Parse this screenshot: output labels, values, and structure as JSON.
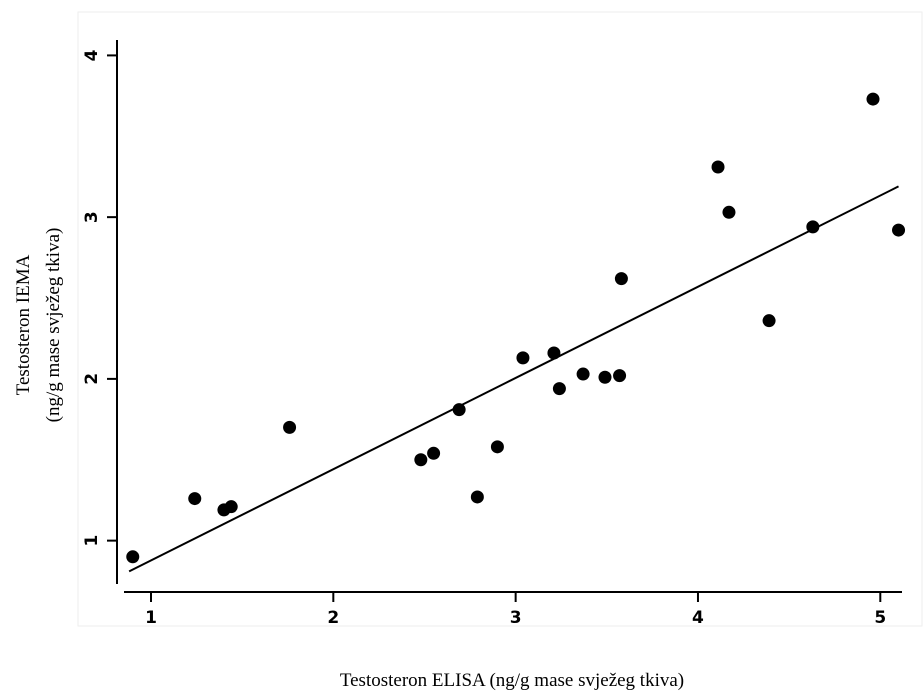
{
  "chart_data": {
    "type": "scatter",
    "xlabel": "Testosteron ELISA (ng/g mase svježeg tkiva)",
    "ylabel_line1": "Testosteron IEMA",
    "ylabel_line2": "(ng/g mase svježeg tkiva)",
    "xlim": [
      0.83,
      5.13
    ],
    "ylim": [
      0.67,
      4.12
    ],
    "xticks": [
      1,
      2,
      3,
      4,
      5
    ],
    "yticks": [
      1,
      2,
      3,
      4
    ],
    "grid": false,
    "legend": "none",
    "points": [
      {
        "x": 0.9,
        "y": 0.9
      },
      {
        "x": 1.24,
        "y": 1.26
      },
      {
        "x": 1.4,
        "y": 1.19
      },
      {
        "x": 1.44,
        "y": 1.21
      },
      {
        "x": 1.76,
        "y": 1.7
      },
      {
        "x": 2.48,
        "y": 1.5
      },
      {
        "x": 2.55,
        "y": 1.54
      },
      {
        "x": 2.69,
        "y": 1.81
      },
      {
        "x": 2.79,
        "y": 1.27
      },
      {
        "x": 2.9,
        "y": 1.58
      },
      {
        "x": 3.04,
        "y": 2.13
      },
      {
        "x": 3.21,
        "y": 2.16
      },
      {
        "x": 3.24,
        "y": 1.94
      },
      {
        "x": 3.37,
        "y": 2.03
      },
      {
        "x": 3.49,
        "y": 2.01
      },
      {
        "x": 3.57,
        "y": 2.02
      },
      {
        "x": 3.58,
        "y": 2.62
      },
      {
        "x": 4.11,
        "y": 3.31
      },
      {
        "x": 4.17,
        "y": 3.03
      },
      {
        "x": 4.39,
        "y": 2.36
      },
      {
        "x": 4.63,
        "y": 2.94
      },
      {
        "x": 4.96,
        "y": 3.73
      },
      {
        "x": 5.1,
        "y": 2.92
      }
    ],
    "fit_line": {
      "x": [
        0.88,
        5.1
      ],
      "y": [
        0.81,
        3.19
      ]
    },
    "colors": {
      "points": "#000000",
      "line": "#000000"
    }
  }
}
